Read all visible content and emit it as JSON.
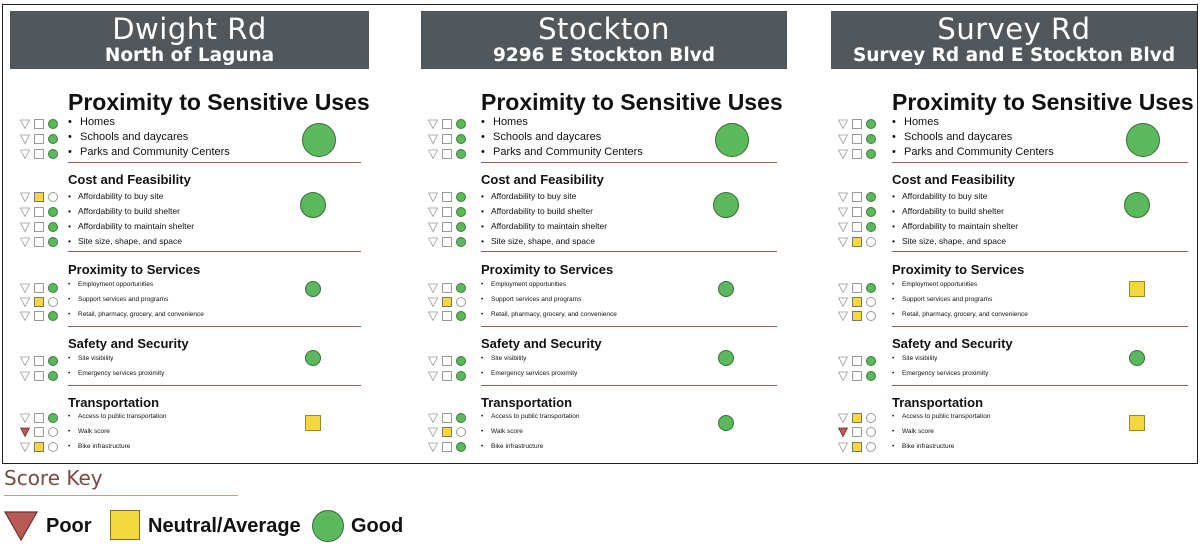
{
  "colors": {
    "header_bg": "#52575b",
    "poor": "#b85a55",
    "neutral": "#f5d83e",
    "good": "#5cb85c",
    "divider": "#8f6060",
    "score_key_title": "#7a4a44"
  },
  "sites": [
    {
      "name": "Dwight Rd",
      "location": "North of Laguna",
      "sections": [
        {
          "title": "Proximity to Sensitive Uses",
          "overall": "good",
          "items": [
            {
              "label": "Homes",
              "score": "good"
            },
            {
              "label": "Schools and daycares",
              "score": "good"
            },
            {
              "label": "Parks and Community Centers",
              "score": "good"
            }
          ]
        },
        {
          "title": "Cost and Feasibility",
          "overall": "good",
          "items": [
            {
              "label": "Affordability to buy site",
              "score": "neutral"
            },
            {
              "label": "Affordability to build shelter",
              "score": "good"
            },
            {
              "label": "Affordability to maintain shelter",
              "score": "good"
            },
            {
              "label": "Site size, shape, and space",
              "score": "good"
            }
          ]
        },
        {
          "title": "Proximity to Services",
          "overall": "good",
          "items": [
            {
              "label": "Employment opportunities",
              "score": "good"
            },
            {
              "label": "Support services and programs",
              "score": "neutral"
            },
            {
              "label": "Retail, pharmacy, grocery, and convenience",
              "score": "good"
            }
          ]
        },
        {
          "title": "Safety and Security",
          "overall": "good",
          "items": [
            {
              "label": "Site visibility",
              "score": "good"
            },
            {
              "label": "Emergency services proximity",
              "score": "good"
            }
          ]
        },
        {
          "title": "Transportation",
          "overall": "neutral",
          "items": [
            {
              "label": "Access to public transportation",
              "score": "good"
            },
            {
              "label": "Walk score",
              "score": "poor"
            },
            {
              "label": "Bike infrastructure",
              "score": "neutral"
            }
          ]
        }
      ]
    },
    {
      "name": "Stockton",
      "location": "9296 E Stockton Blvd",
      "sections": [
        {
          "title": "Proximity to Sensitive Uses",
          "overall": "good",
          "items": [
            {
              "label": "Homes",
              "score": "good"
            },
            {
              "label": "Schools and daycares",
              "score": "good"
            },
            {
              "label": "Parks and Community Centers",
              "score": "good"
            }
          ]
        },
        {
          "title": "Cost and Feasibility",
          "overall": "good",
          "items": [
            {
              "label": "Affordability to buy site",
              "score": "good"
            },
            {
              "label": "Affordability to build shelter",
              "score": "good"
            },
            {
              "label": "Affordability to maintain shelter",
              "score": "good"
            },
            {
              "label": "Site size, shape, and space",
              "score": "good"
            }
          ]
        },
        {
          "title": "Proximity to Services",
          "overall": "good",
          "items": [
            {
              "label": "Employment opportunities",
              "score": "good"
            },
            {
              "label": "Support services and programs",
              "score": "neutral"
            },
            {
              "label": "Retail, pharmacy, grocery, and convenience",
              "score": "good"
            }
          ]
        },
        {
          "title": "Safety and Security",
          "overall": "good",
          "items": [
            {
              "label": "Site visibility",
              "score": "good"
            },
            {
              "label": "Emergency services proximity",
              "score": "good"
            }
          ]
        },
        {
          "title": "Transportation",
          "overall": "good",
          "items": [
            {
              "label": "Access to public transportation",
              "score": "good"
            },
            {
              "label": "Walk score",
              "score": "neutral"
            },
            {
              "label": "Bike infrastructure",
              "score": "good"
            }
          ]
        }
      ]
    },
    {
      "name": "Survey Rd",
      "location": "Survey Rd and E Stockton Blvd",
      "sections": [
        {
          "title": "Proximity to Sensitive Uses",
          "overall": "good",
          "items": [
            {
              "label": "Homes",
              "score": "good"
            },
            {
              "label": "Schools and daycares",
              "score": "good"
            },
            {
              "label": "Parks and Community Centers",
              "score": "good"
            }
          ]
        },
        {
          "title": "Cost and Feasibility",
          "overall": "good",
          "items": [
            {
              "label": "Affordability to buy site",
              "score": "good"
            },
            {
              "label": "Affordability to build shelter",
              "score": "good"
            },
            {
              "label": "Affordability to maintain shelter",
              "score": "good"
            },
            {
              "label": "Site size, shape, and space",
              "score": "neutral"
            }
          ]
        },
        {
          "title": "Proximity to Services",
          "overall": "neutral",
          "items": [
            {
              "label": "Employment opportunities",
              "score": "good"
            },
            {
              "label": "Support services and programs",
              "score": "neutral"
            },
            {
              "label": "Retail, pharmacy, grocery, and convenience",
              "score": "neutral"
            }
          ]
        },
        {
          "title": "Safety and Security",
          "overall": "good",
          "items": [
            {
              "label": "Site visibility",
              "score": "good"
            },
            {
              "label": "Emergency services proximity",
              "score": "good"
            }
          ]
        },
        {
          "title": "Transportation",
          "overall": "neutral",
          "items": [
            {
              "label": "Access to public transportation",
              "score": "neutral"
            },
            {
              "label": "Walk score",
              "score": "poor"
            },
            {
              "label": "Bike infrastructure",
              "score": "neutral"
            }
          ]
        }
      ]
    }
  ],
  "score_key": {
    "title": "Score Key",
    "items": [
      {
        "label": "Poor",
        "symbol": "triangle-down"
      },
      {
        "label": "Neutral/Average",
        "symbol": "square"
      },
      {
        "label": "Good",
        "symbol": "circle"
      }
    ]
  }
}
